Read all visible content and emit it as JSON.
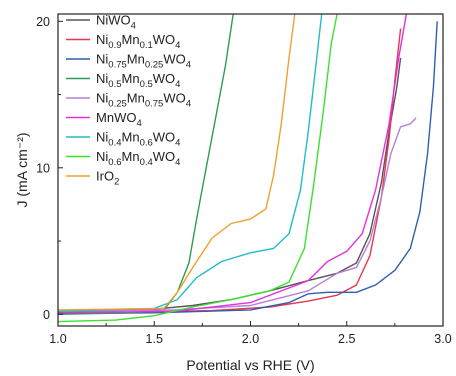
{
  "chart_data": {
    "type": "line",
    "xlabel": "Potential vs RHE (V)",
    "ylabel": "J (mA cm⁻²)",
    "xlim": [
      1.0,
      3.0
    ],
    "ylim": [
      -0.8,
      20.5
    ],
    "x_ticks": [
      "1.0",
      "1.5",
      "2.0",
      "2.5",
      "3.0"
    ],
    "y_ticks": [
      "0",
      "10",
      "20"
    ],
    "legend_position": "top-left",
    "grid": false,
    "series": [
      {
        "name": "NiWO4",
        "name_parts": [
          [
            "Ni",
            ""
          ],
          [
            "WO",
            "4"
          ]
        ],
        "color": "#555555",
        "points": [
          [
            1.0,
            0.1
          ],
          [
            1.2,
            0.2
          ],
          [
            1.5,
            0.35
          ],
          [
            1.7,
            0.6
          ],
          [
            1.9,
            1.0
          ],
          [
            2.1,
            1.6
          ],
          [
            2.3,
            2.3
          ],
          [
            2.45,
            2.8
          ],
          [
            2.55,
            3.5
          ],
          [
            2.62,
            5.5
          ],
          [
            2.68,
            9.0
          ],
          [
            2.72,
            12.5
          ],
          [
            2.76,
            15.5
          ],
          [
            2.78,
            17.5
          ]
        ]
      },
      {
        "name": "Ni0.9Mn0.1WO4",
        "name_parts": [
          [
            "Ni",
            "0.9"
          ],
          [
            "Mn",
            "0.1"
          ],
          [
            "WO",
            "4"
          ]
        ],
        "color": "#e8374a",
        "points": [
          [
            1.0,
            0.1
          ],
          [
            1.4,
            0.15
          ],
          [
            1.8,
            0.25
          ],
          [
            2.1,
            0.5
          ],
          [
            2.3,
            0.9
          ],
          [
            2.45,
            1.3
          ],
          [
            2.55,
            2.0
          ],
          [
            2.62,
            4.0
          ],
          [
            2.68,
            8.0
          ],
          [
            2.72,
            12.0
          ],
          [
            2.75,
            16.0
          ],
          [
            2.78,
            19.5
          ]
        ]
      },
      {
        "name": "Ni0.75Mn0.25WO4",
        "name_parts": [
          [
            "Ni",
            "0.75"
          ],
          [
            "Mn",
            "0.25"
          ],
          [
            "WO",
            "4"
          ]
        ],
        "color": "#2f5fae",
        "points": [
          [
            1.0,
            0.05
          ],
          [
            1.5,
            0.1
          ],
          [
            2.0,
            0.3
          ],
          [
            2.2,
            0.8
          ],
          [
            2.3,
            1.4
          ],
          [
            2.4,
            1.5
          ],
          [
            2.55,
            1.5
          ],
          [
            2.65,
            2.0
          ],
          [
            2.75,
            3.0
          ],
          [
            2.83,
            4.5
          ],
          [
            2.88,
            7.0
          ],
          [
            2.92,
            11.0
          ],
          [
            2.95,
            15.5
          ],
          [
            2.97,
            20.0
          ]
        ]
      },
      {
        "name": "Ni0.5Mn0.5WO4",
        "name_parts": [
          [
            "Ni",
            "0.5"
          ],
          [
            "Mn",
            "0.5"
          ],
          [
            "WO",
            "4"
          ]
        ],
        "color": "#2e9c52",
        "points": [
          [
            1.0,
            0.0
          ],
          [
            1.4,
            0.1
          ],
          [
            1.55,
            0.3
          ],
          [
            1.62,
            1.5
          ],
          [
            1.68,
            3.5
          ],
          [
            1.72,
            6.5
          ],
          [
            1.77,
            10.0
          ],
          [
            1.82,
            13.5
          ],
          [
            1.87,
            17.0
          ],
          [
            1.91,
            20.5
          ]
        ]
      },
      {
        "name": "Ni0.25Mn0.75WO4",
        "name_parts": [
          [
            "Ni",
            "0.25"
          ],
          [
            "Mn",
            "0.75"
          ],
          [
            "WO",
            "4"
          ]
        ],
        "color": "#b77fd9",
        "points": [
          [
            1.0,
            0.2
          ],
          [
            1.6,
            0.3
          ],
          [
            2.0,
            0.6
          ],
          [
            2.3,
            1.6
          ],
          [
            2.45,
            2.8
          ],
          [
            2.55,
            3.2
          ],
          [
            2.62,
            5.0
          ],
          [
            2.68,
            8.0
          ],
          [
            2.73,
            11.0
          ],
          [
            2.78,
            12.8
          ],
          [
            2.83,
            13.0
          ],
          [
            2.86,
            13.4
          ]
        ]
      },
      {
        "name": "MnWO4",
        "name_parts": [
          [
            "Mn",
            ""
          ],
          [
            "WO",
            "4"
          ]
        ],
        "color": "#e52ee0",
        "points": [
          [
            1.0,
            0.1
          ],
          [
            1.6,
            0.2
          ],
          [
            2.0,
            0.8
          ],
          [
            2.3,
            2.3
          ],
          [
            2.4,
            3.6
          ],
          [
            2.5,
            4.3
          ],
          [
            2.58,
            5.5
          ],
          [
            2.65,
            8.5
          ],
          [
            2.72,
            13.0
          ],
          [
            2.77,
            17.5
          ],
          [
            2.81,
            20.5
          ]
        ]
      },
      {
        "name": "Ni0.4Mn0.6WO4",
        "name_parts": [
          [
            "Ni",
            "0.4"
          ],
          [
            "Mn",
            "0.6"
          ],
          [
            "WO",
            "4"
          ]
        ],
        "color": "#22bcc4",
        "points": [
          [
            1.0,
            0.2
          ],
          [
            1.5,
            0.4
          ],
          [
            1.62,
            1.0
          ],
          [
            1.72,
            2.5
          ],
          [
            1.85,
            3.6
          ],
          [
            2.0,
            4.2
          ],
          [
            2.12,
            4.5
          ],
          [
            2.2,
            5.5
          ],
          [
            2.26,
            8.5
          ],
          [
            2.3,
            12.5
          ],
          [
            2.34,
            17.0
          ],
          [
            2.37,
            20.5
          ]
        ]
      },
      {
        "name": "Ni0.6Mn0.4WO4",
        "name_parts": [
          [
            "Ni",
            "0.6"
          ],
          [
            "Mn",
            "0.4"
          ],
          [
            "WO",
            "4"
          ]
        ],
        "color": "#3ee02f",
        "points": [
          [
            1.0,
            -0.5
          ],
          [
            1.3,
            -0.4
          ],
          [
            1.5,
            -0.1
          ],
          [
            1.7,
            0.5
          ],
          [
            1.9,
            1.0
          ],
          [
            2.1,
            1.6
          ],
          [
            2.2,
            2.2
          ],
          [
            2.28,
            4.5
          ],
          [
            2.33,
            9.0
          ],
          [
            2.38,
            14.0
          ],
          [
            2.42,
            18.5
          ],
          [
            2.45,
            20.5
          ]
        ]
      },
      {
        "name": "IrO2",
        "name_parts": [
          [
            "IrO",
            "2"
          ]
        ],
        "color": "#f0a02c",
        "points": [
          [
            1.0,
            0.3
          ],
          [
            1.55,
            0.4
          ],
          [
            1.62,
            1.5
          ],
          [
            1.7,
            3.2
          ],
          [
            1.8,
            5.2
          ],
          [
            1.9,
            6.2
          ],
          [
            2.0,
            6.5
          ],
          [
            2.08,
            7.2
          ],
          [
            2.12,
            9.5
          ],
          [
            2.16,
            13.0
          ],
          [
            2.2,
            17.5
          ],
          [
            2.23,
            20.5
          ]
        ]
      }
    ]
  }
}
